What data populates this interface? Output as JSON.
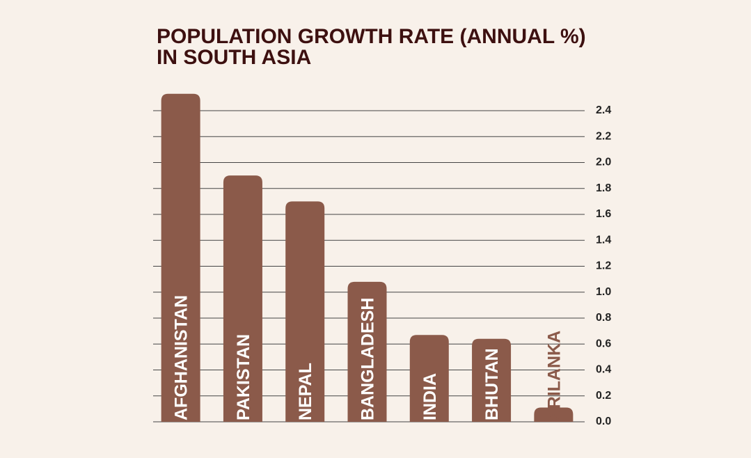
{
  "chart_data": {
    "type": "bar",
    "title": [
      "POPULATION GROWTH RATE (ANNUAL %)",
      "IN SOUTH ASIA"
    ],
    "categories": [
      "AFGHANISTAN",
      "PAKISTAN",
      "NEPAL",
      "BANGLADESH",
      "INDIA",
      "BHUTAN",
      "SRILANKA"
    ],
    "values": [
      2.53,
      1.9,
      1.7,
      1.08,
      0.67,
      0.64,
      0.11
    ],
    "color": "#8b5a4a",
    "ylim": [
      0,
      2.55
    ],
    "yticks": [
      {
        "value": 0,
        "label": "0.0"
      },
      0.2,
      0.4,
      0.6,
      0.8,
      {
        "value": 1,
        "label": "1.0"
      },
      1.2,
      1.4,
      1.6,
      1.8,
      {
        "value": 2,
        "label": "2.0"
      },
      2.2,
      2.4
    ],
    "grid": true
  }
}
